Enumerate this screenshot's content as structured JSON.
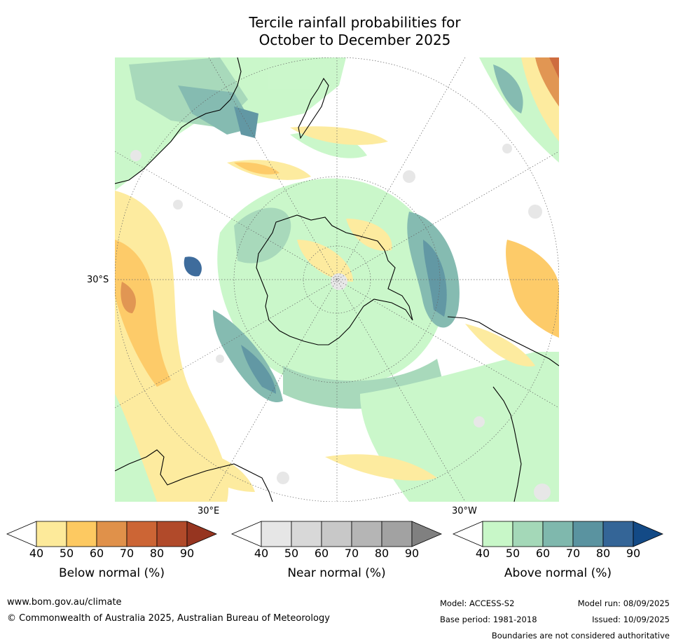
{
  "title_line1": "Tercile rainfall probabilities for",
  "title_line2": "October to December 2025",
  "axis_labels": {
    "lat_30s": "30°S",
    "lon_30e": "30°E",
    "lon_30w": "30°W"
  },
  "colorbars": [
    {
      "label": "Below normal (%)",
      "ticks": [
        "40",
        "50",
        "60",
        "70",
        "80",
        "90"
      ],
      "colors": [
        "#ffffff",
        "#fdea9a",
        "#fdc961",
        "#e0914a",
        "#cc6535",
        "#b14a2a",
        "#963520"
      ]
    },
    {
      "label": "Near normal (%)",
      "ticks": [
        "40",
        "50",
        "60",
        "70",
        "80",
        "90"
      ],
      "colors": [
        "#ffffff",
        "#e6e6e6",
        "#d8d8d8",
        "#c8c8c8",
        "#b5b5b5",
        "#a2a2a2",
        "#808080"
      ]
    },
    {
      "label": "Above normal (%)",
      "ticks": [
        "40",
        "50",
        "60",
        "70",
        "80",
        "90"
      ],
      "colors": [
        "#ffffff",
        "#c8f7c8",
        "#a4d8b8",
        "#7fb8ad",
        "#5a93a0",
        "#346597",
        "#134a86"
      ]
    }
  ],
  "footer": {
    "url": "www.bom.gov.au/climate",
    "copyright": "© Commonwealth of Australia 2025, Australian Bureau of Meteorology",
    "model": "Model: ACCESS-S2",
    "base_period": "Base period: 1981-2018",
    "model_run": "Model run: 08/09/2025",
    "issued": "Issued: 10/09/2025",
    "disclaimer": "Boundaries are not considered authoritative"
  }
}
